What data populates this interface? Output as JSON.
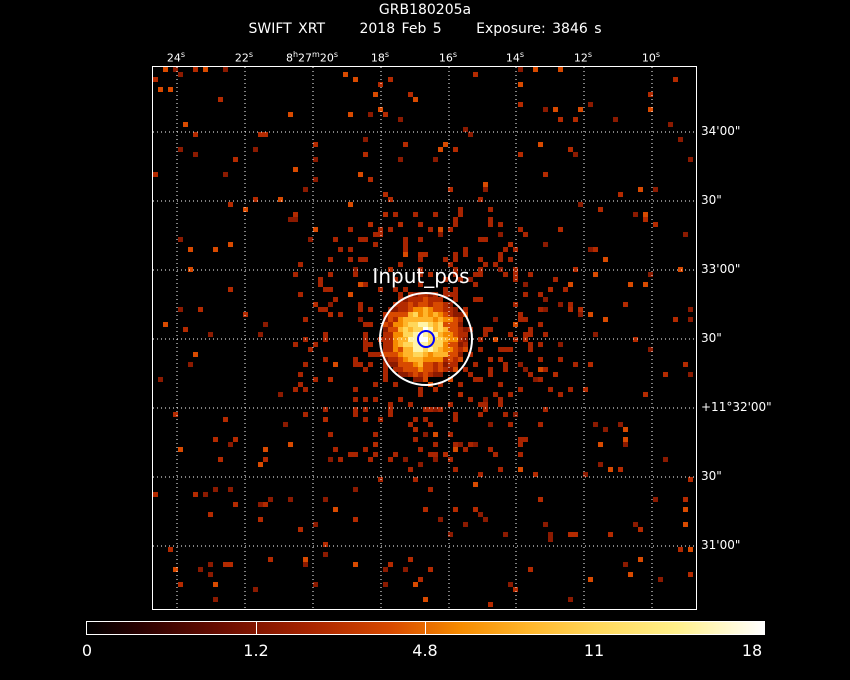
{
  "header": {
    "object": "GRB180205a",
    "instrument": "SWIFT XRT",
    "date": "2018 Feb  5",
    "exposure": "Exposure: 3846 s"
  },
  "ra_labels": [
    {
      "main": "24",
      "sup": "s"
    },
    {
      "main": "22",
      "sup": "s"
    },
    {
      "main": "8",
      "sup": "h",
      "main2": "27",
      "sup2": "m",
      "main3": "20",
      "sup3": "s"
    },
    {
      "main": "18",
      "sup": "s"
    },
    {
      "main": "16",
      "sup": "s"
    },
    {
      "main": "14",
      "sup": "s"
    },
    {
      "main": "12",
      "sup": "s"
    },
    {
      "main": "10",
      "sup": "s"
    }
  ],
  "dec_labels": [
    "34'00\"",
    "30\"",
    "33'00\"",
    "30\"",
    "+11°32'00\"",
    "30\"",
    "31'00\""
  ],
  "region_label": "Input_pos",
  "colorbar": {
    "labels": [
      "0",
      "1.2",
      "4.8",
      "11",
      "18"
    ],
    "colors": {
      "low": "#000000",
      "mid": "#f58a00",
      "high": "#ffffff"
    }
  },
  "colors": {
    "background": "#000000",
    "grid": "#ffffff",
    "region_circle": "#ffffff",
    "position_circle": "#0000ff",
    "photon_low": "#8b1a00",
    "photon_high": "#ffffff"
  }
}
